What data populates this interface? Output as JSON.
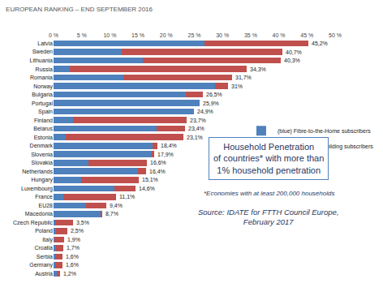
{
  "chart_data": {
    "type": "bar",
    "orientation": "horizontal",
    "stacked": true,
    "title": "EUROPEAN RANKING – END SEPTEMBER 2016",
    "categories": [
      "Latvia",
      "Sweden",
      "Lithuania",
      "Russia",
      "Romania",
      "Norway",
      "Bulgaria",
      "Portugal",
      "Spain",
      "Finland",
      "Belarus",
      "Estonia",
      "Denmark",
      "Slovenia",
      "Slovakia",
      "Netherlands",
      "Hungary",
      "Luxembourg",
      "France",
      "EU28",
      "Macedonia",
      "Czech Republic",
      "Poland",
      "Italy",
      "Croatia",
      "Serbia",
      "Germany",
      "Austria"
    ],
    "series": [
      {
        "name": "(blue) Fibre-to-the-Home subscribers",
        "color": "#4f81bd",
        "values": [
          26.8,
          12.1,
          15.9,
          2.9,
          12.4,
          28.7,
          23.5,
          25.9,
          24.9,
          3.4,
          18.3,
          2.1,
          17.6,
          17.4,
          6.2,
          15.0,
          4.9,
          10.8,
          1.8,
          5.8,
          8.3,
          0.3,
          0.5,
          0.2,
          0.4,
          0.3,
          0.3,
          0.6
        ]
      },
      {
        "name": "(red) Fibre-to-the-Building subscribers",
        "color": "#c0504d",
        "values": [
          18.4,
          28.6,
          24.4,
          31.4,
          19.3,
          2.3,
          3.0,
          0,
          0,
          20.3,
          5.1,
          21.0,
          0.8,
          0.5,
          10.4,
          1.4,
          10.2,
          3.8,
          9.3,
          3.6,
          0.4,
          3.2,
          2.0,
          1.7,
          1.3,
          1.3,
          1.3,
          0.6
        ]
      }
    ],
    "totals": [
      45.2,
      40.7,
      40.3,
      34.3,
      31.7,
      31,
      26.5,
      25.9,
      24.9,
      23.7,
      23.4,
      23.1,
      18.4,
      17.9,
      16.6,
      16.4,
      15.1,
      14.6,
      11.1,
      9.4,
      8.7,
      3.5,
      2.5,
      1.9,
      1.7,
      1.6,
      1.6,
      1.2
    ],
    "total_labels": [
      "45,2%",
      "40,7%",
      "40,3%",
      "34,3%",
      "31,7%",
      "31%",
      "26,5%",
      "25,9%",
      "24,9%",
      "23,7%",
      "23,4%",
      "23,1%",
      "18,4%",
      "17,9%",
      "16,6%",
      "16,4%",
      "15,1%",
      "14,6%",
      "11,1%",
      "9,4%",
      "8,7%",
      "3,5%",
      "2,5%",
      "1,9%",
      "1,7%",
      "1,6%",
      "1,6%",
      "1,2%"
    ],
    "xlim": [
      0,
      50
    ],
    "xticks": [
      {
        "value": 0,
        "label": "0 %"
      },
      {
        "value": 5,
        "label": "5 %"
      },
      {
        "value": 10,
        "label": "10 %"
      },
      {
        "value": 15,
        "label": "15 %"
      },
      {
        "value": 20,
        "label": "20 %"
      },
      {
        "value": 25,
        "label": "25 %"
      },
      {
        "value": 30,
        "label": "30 %"
      },
      {
        "value": 35,
        "label": "35 %"
      },
      {
        "value": 40,
        "label": "40 %"
      },
      {
        "value": 45,
        "label": "45 %"
      },
      {
        "value": 50,
        "label": "50 %"
      }
    ],
    "grid": false,
    "legend": "right",
    "annotations": [
      {
        "lines": [
          "Household Penetration",
          "of countries* with more than",
          "1% household penetration"
        ]
      },
      {
        "lines": [
          "*Economies with at least 200,000 households"
        ]
      },
      {
        "lines": [
          "Source: IDATE for FTTH Council Europe,",
          "February 2017"
        ]
      }
    ]
  }
}
